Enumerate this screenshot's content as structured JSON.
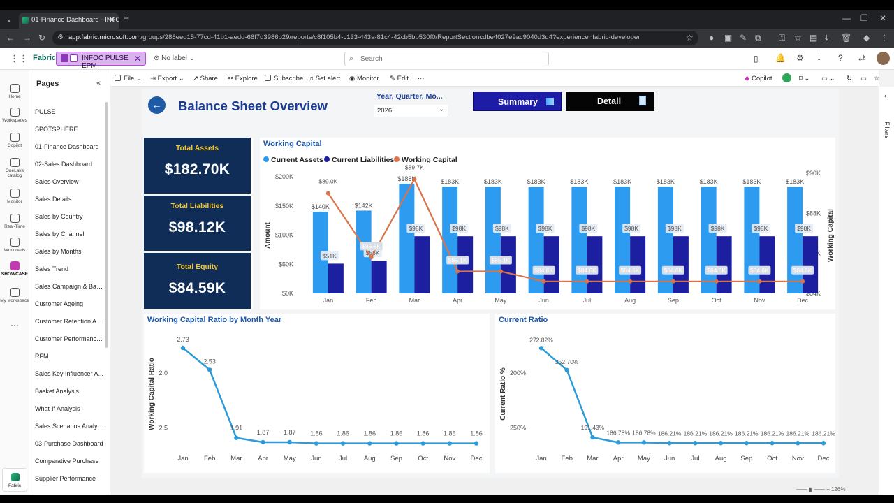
{
  "browser": {
    "tab_title": "01-Finance Dashboard - INFOC",
    "url_host": "app.fabric.microsoft.com",
    "url_path": "/groups/286eed15-77cd-41b1-aedd-66f7d3986b29/reports/c8f105b4-c133-443a-81c4-42cb5bb530f0/ReportSectioncdbe4027e9ac9040d3d4?experience=fabric-developer"
  },
  "appbar": {
    "brand": "Fabric",
    "workspace": "INFOC PULSE EPM",
    "sensitivity": "No label",
    "search_placeholder": "Search"
  },
  "leftnav": [
    {
      "label": "Home",
      "icon": "home-icon"
    },
    {
      "label": "Workspaces",
      "icon": "workspaces-icon"
    },
    {
      "label": "Copilot",
      "icon": "copilot-icon"
    },
    {
      "label": "OneLake catalog",
      "icon": "onelake-icon"
    },
    {
      "label": "Monitor",
      "icon": "monitor-icon"
    },
    {
      "label": "Real-Time",
      "icon": "realtime-icon"
    },
    {
      "label": "Workloads",
      "icon": "workloads-icon"
    },
    {
      "label": "SHOWCASE",
      "icon": "showcase-icon"
    },
    {
      "label": "My workspace",
      "icon": "my-workspace-icon"
    }
  ],
  "fabric_button": "Fabric",
  "pages": {
    "title": "Pages",
    "items": [
      "PULSE",
      "SPOTSPHERE",
      "01-Finance Dashboard",
      "02-Sales Dashboard",
      "Sales Overview",
      "Sales Details",
      "Sales by Country",
      "Sales by Channel",
      "Sales by Months",
      "Sales Trend",
      "Sales Campaign & Bas...",
      "Customer Ageing",
      "Customer Retention A...",
      "Customer Performance...",
      "RFM",
      "Sales Key Influencer A...",
      "Basket Analysis",
      "What-If Analysis",
      "Sales Scenarios Analysis",
      "03-Purchase Dashboard",
      "Comparative Purchase",
      "Supplier Performance"
    ]
  },
  "cmdbar": {
    "file": "File",
    "export": "Export",
    "share": "Share",
    "explore": "Explore",
    "subscribe": "Subscribe",
    "set_alert": "Set alert",
    "monitor": "Monitor",
    "edit": "Edit",
    "more": "···",
    "copilot": "Copilot"
  },
  "filters_label": "Filters",
  "report": {
    "title": "Balance Sheet Overview",
    "slicer_label": "Year, Quarter, Mo...",
    "slicer_value": "2026",
    "summary_btn": "Summary",
    "detail_btn": "Detail",
    "kpis": [
      {
        "label": "Total Assets",
        "value": "$182.70K"
      },
      {
        "label": "Total Liabilities",
        "value": "$98.12K"
      },
      {
        "label": "Total Equity",
        "value": "$84.59K"
      }
    ]
  },
  "chart_data": [
    {
      "type": "bar",
      "title": "Working Capital",
      "legend": [
        "Current Assets",
        "Current Liabilities",
        "Working Capital"
      ],
      "categories": [
        "Jan",
        "Feb",
        "Mar",
        "Apr",
        "May",
        "Jun",
        "Jul",
        "Aug",
        "Sep",
        "Oct",
        "Nov",
        "Dec"
      ],
      "ylabel": "Amount",
      "y2label": "Working Capital",
      "ylim": [
        0,
        200000
      ],
      "y_ticks": [
        "$0K",
        "$50K",
        "$100K",
        "$150K",
        "$200K"
      ],
      "y2lim": [
        84000,
        90000
      ],
      "y2_ticks": [
        "$84K",
        "$86K",
        "$88K",
        "$90K"
      ],
      "series": [
        {
          "name": "Current Assets",
          "color": "#2d9bf0",
          "values": [
            140000,
            142000,
            188000,
            183000,
            183000,
            183000,
            183000,
            183000,
            183000,
            183000,
            183000,
            183000
          ],
          "labels": [
            "$140K",
            "$142K",
            "$188K",
            "$183K",
            "$183K",
            "$183K",
            "$183K",
            "$183K",
            "$183K",
            "$183K",
            "$183K",
            "$183K"
          ]
        },
        {
          "name": "Current Liabilities",
          "color": "#1b1fa0",
          "values": [
            51000,
            56000,
            98000,
            98000,
            98000,
            98000,
            98000,
            98000,
            98000,
            98000,
            98000,
            98000
          ],
          "labels": [
            "$51K",
            "$56K",
            "$98K",
            "$98K",
            "$98K",
            "$98K",
            "$98K",
            "$98K",
            "$98K",
            "$98K",
            "$98K",
            "$98K"
          ]
        },
        {
          "name": "Working Capital",
          "color": "#d9744a",
          "axis": "secondary",
          "values": [
            89000,
            85800,
            89700,
            85100,
            85100,
            84600,
            84600,
            84600,
            84600,
            84600,
            84600,
            84600
          ],
          "labels": [
            "$89.0K",
            "$85.8K",
            "$89.7K",
            "$85.1K",
            "$85.1K",
            "$84.6K",
            "$84.6K",
            "$84.6K",
            "$84.6K",
            "$84.6K",
            "$84.6K",
            "$84.6K"
          ]
        }
      ]
    },
    {
      "type": "line",
      "title": "Working Capital Ratio by Month Year",
      "ylabel": "Working Capital Ratio",
      "categories": [
        "Jan",
        "Feb",
        "Mar",
        "Apr",
        "May",
        "Jun",
        "Jul",
        "Aug",
        "Sep",
        "Oct",
        "Nov",
        "Dec"
      ],
      "ylim": [
        1.8,
        2.8
      ],
      "y_ticks": [
        "2.0",
        "2.5"
      ],
      "series": [
        {
          "color": "#2d9bd8",
          "values": [
            2.73,
            2.53,
            1.91,
            1.87,
            1.87,
            1.86,
            1.86,
            1.86,
            1.86,
            1.86,
            1.86,
            1.86
          ],
          "labels": [
            "2.73",
            "2.53",
            "1.91",
            "1.87",
            "1.87",
            "1.86",
            "1.86",
            "1.86",
            "1.86",
            "1.86",
            "1.86",
            "1.86"
          ]
        }
      ]
    },
    {
      "type": "line",
      "title": "Current Ratio",
      "ylabel": "Current Ratio %",
      "categories": [
        "Jan",
        "Feb",
        "Mar",
        "Apr",
        "May",
        "Jun",
        "Jul",
        "Aug",
        "Sep",
        "Oct",
        "Nov",
        "Dec"
      ],
      "ylim": [
        180,
        280
      ],
      "y_ticks": [
        "200%",
        "250%"
      ],
      "series": [
        {
          "color": "#2d9bd8",
          "values": [
            272.82,
            252.7,
            191.43,
            186.78,
            186.78,
            186.21,
            186.21,
            186.21,
            186.21,
            186.21,
            186.21,
            186.21
          ],
          "labels": [
            "272.82%",
            "252.70%",
            "191.43%",
            "186.78%",
            "186.78%",
            "186.21%",
            "186.21%",
            "186.21%",
            "186.21%",
            "186.21%",
            "186.21%",
            "186.21%"
          ]
        }
      ]
    }
  ],
  "status_zoom": "126%"
}
